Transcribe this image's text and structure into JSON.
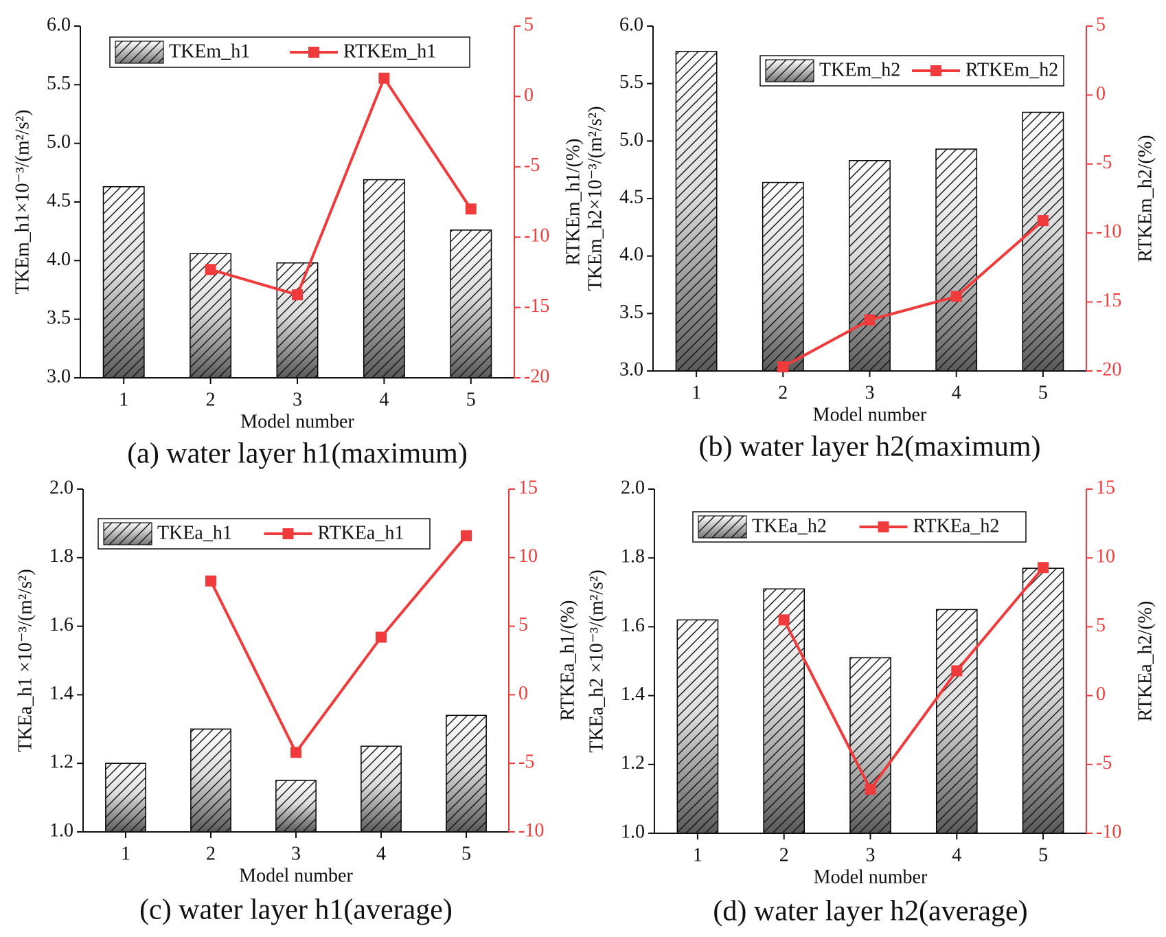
{
  "chart_data": [
    {
      "type": "bar-line",
      "caption": "(a) water layer h1(maximum)",
      "x_label": "Model number",
      "y_label": "TKEm_h1×10⁻³/(m²/s²)",
      "y2_label": "RTKEm_h1/(%)",
      "categories": [
        "1",
        "2",
        "3",
        "4",
        "5"
      ],
      "series": [
        {
          "name": "TKEm_h1",
          "color": "#000000",
          "values": [
            4.63,
            4.06,
            3.98,
            4.69,
            4.26
          ]
        },
        {
          "name": "RTKEm_h1",
          "color": "#ef3b3b",
          "axis": "y2",
          "values": [
            null,
            -12.3,
            -14.1,
            1.3,
            -8.0
          ]
        }
      ],
      "ylim": [
        3,
        6
      ],
      "yticks": [
        {
          "value": 3,
          "label": "3.0"
        },
        3.5,
        {
          "value": 4,
          "label": "4.0"
        },
        4.5,
        {
          "value": 5,
          "label": "5.0"
        },
        5.5,
        {
          "value": 6,
          "label": "6.0"
        }
      ],
      "y2lim": [
        -20,
        5
      ],
      "y2ticks": [
        -20,
        -15,
        -10,
        -5,
        0,
        5
      ]
    },
    {
      "type": "bar-line",
      "caption": "(b) water layer h2(maximum)",
      "x_label": "Model number",
      "y_label": "TKEm_h2×10⁻³/(m²/s²)",
      "y2_label": "RTKEm_h2/(%)",
      "categories": [
        "1",
        "2",
        "3",
        "4",
        "5"
      ],
      "series": [
        {
          "name": "TKEm_h2",
          "color": "#000000",
          "values": [
            5.78,
            4.64,
            4.83,
            4.93,
            5.25
          ]
        },
        {
          "name": "RTKEm_h2",
          "color": "#ef3b3b",
          "axis": "y2",
          "values": [
            null,
            -19.7,
            -16.3,
            -14.6,
            -9.1
          ]
        }
      ],
      "ylim": [
        3,
        6
      ],
      "yticks": [
        {
          "value": 3,
          "label": "3.0"
        },
        3.5,
        {
          "value": 4,
          "label": "4.0"
        },
        4.5,
        {
          "value": 5,
          "label": "5.0"
        },
        5.5,
        {
          "value": 6,
          "label": "6.0"
        }
      ],
      "y2lim": [
        -20,
        5
      ],
      "y2ticks": [
        -20,
        -15,
        -10,
        -5,
        0,
        5
      ]
    },
    {
      "type": "bar-line",
      "caption": "(c) water layer h1(average)",
      "x_label": "Model number",
      "y_label": "TKEa_h1 ×10⁻³/(m²/s²)",
      "y2_label": "RTKEa_h1/(%)",
      "categories": [
        "1",
        "2",
        "3",
        "4",
        "5"
      ],
      "series": [
        {
          "name": "TKEa_h1",
          "color": "#000000",
          "values": [
            1.2,
            1.3,
            1.15,
            1.25,
            1.34
          ]
        },
        {
          "name": "RTKEa_h1",
          "color": "#ef3b3b",
          "axis": "y2",
          "values": [
            null,
            8.3,
            -4.2,
            4.2,
            11.6
          ]
        }
      ],
      "ylim": [
        1,
        2
      ],
      "yticks": [
        {
          "value": 1,
          "label": "1.0"
        },
        1.2,
        1.4,
        1.6,
        1.8,
        {
          "value": 2,
          "label": "2.0"
        }
      ],
      "y2lim": [
        -10,
        15
      ],
      "y2ticks": [
        -10,
        -5,
        0,
        5,
        10,
        15
      ]
    },
    {
      "type": "bar-line",
      "caption": "(d) water layer h2(average)",
      "x_label": "Model number",
      "y_label": "TKEa_h2 ×10⁻³/(m²/s²)",
      "y2_label": "RTKEa_h2/(%)",
      "categories": [
        "1",
        "2",
        "3",
        "4",
        "5"
      ],
      "series": [
        {
          "name": "TKEa_h2",
          "color": "#000000",
          "values": [
            1.62,
            1.71,
            1.51,
            1.65,
            1.77
          ]
        },
        {
          "name": "RTKEa_h2",
          "color": "#ef3b3b",
          "axis": "y2",
          "values": [
            null,
            5.5,
            -6.8,
            1.8,
            9.3
          ]
        }
      ],
      "ylim": [
        1,
        2
      ],
      "yticks": [
        {
          "value": 1,
          "label": "1.0"
        },
        1.2,
        1.4,
        1.6,
        1.8,
        {
          "value": 2,
          "label": "2.0"
        }
      ],
      "y2lim": [
        -10,
        15
      ],
      "y2ticks": [
        -10,
        -5,
        0,
        5,
        10,
        15
      ]
    }
  ]
}
